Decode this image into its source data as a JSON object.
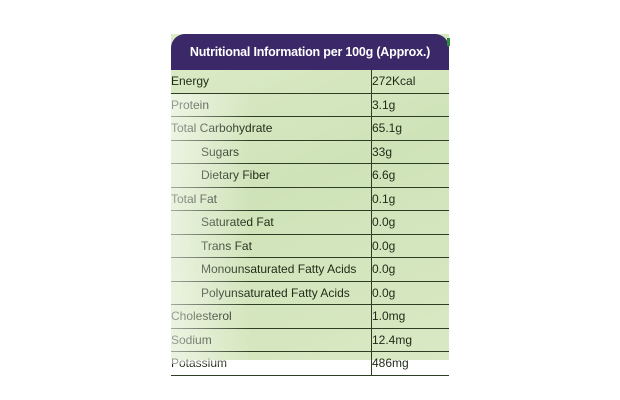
{
  "label": {
    "title": "Nutritional Information per 100g (Approx.)",
    "rows": [
      {
        "name": "Energy",
        "value": "272Kcal"
      },
      {
        "name": "Protein",
        "value": "3.1g"
      },
      {
        "name": "Total Carbohydrate",
        "value": "65.1g"
      },
      {
        "name": "Sugars",
        "value": "33g"
      },
      {
        "name": "Dietary Fiber",
        "value": "6.6g"
      },
      {
        "name": "Total Fat",
        "value": "0.1g"
      },
      {
        "name": "Saturated Fat",
        "value": "0.0g"
      },
      {
        "name": "Trans Fat",
        "value": "0.0g"
      },
      {
        "name": "Monounsaturated Fatty Acids",
        "value": "0.0g"
      },
      {
        "name": "Polyunsaturated Fatty Acids",
        "value": "0.0g"
      },
      {
        "name": "Cholesterol",
        "value": "1.0mg"
      },
      {
        "name": "Sodium",
        "value": "12.4mg"
      },
      {
        "name": "Potassium",
        "value": "486mg"
      }
    ]
  }
}
